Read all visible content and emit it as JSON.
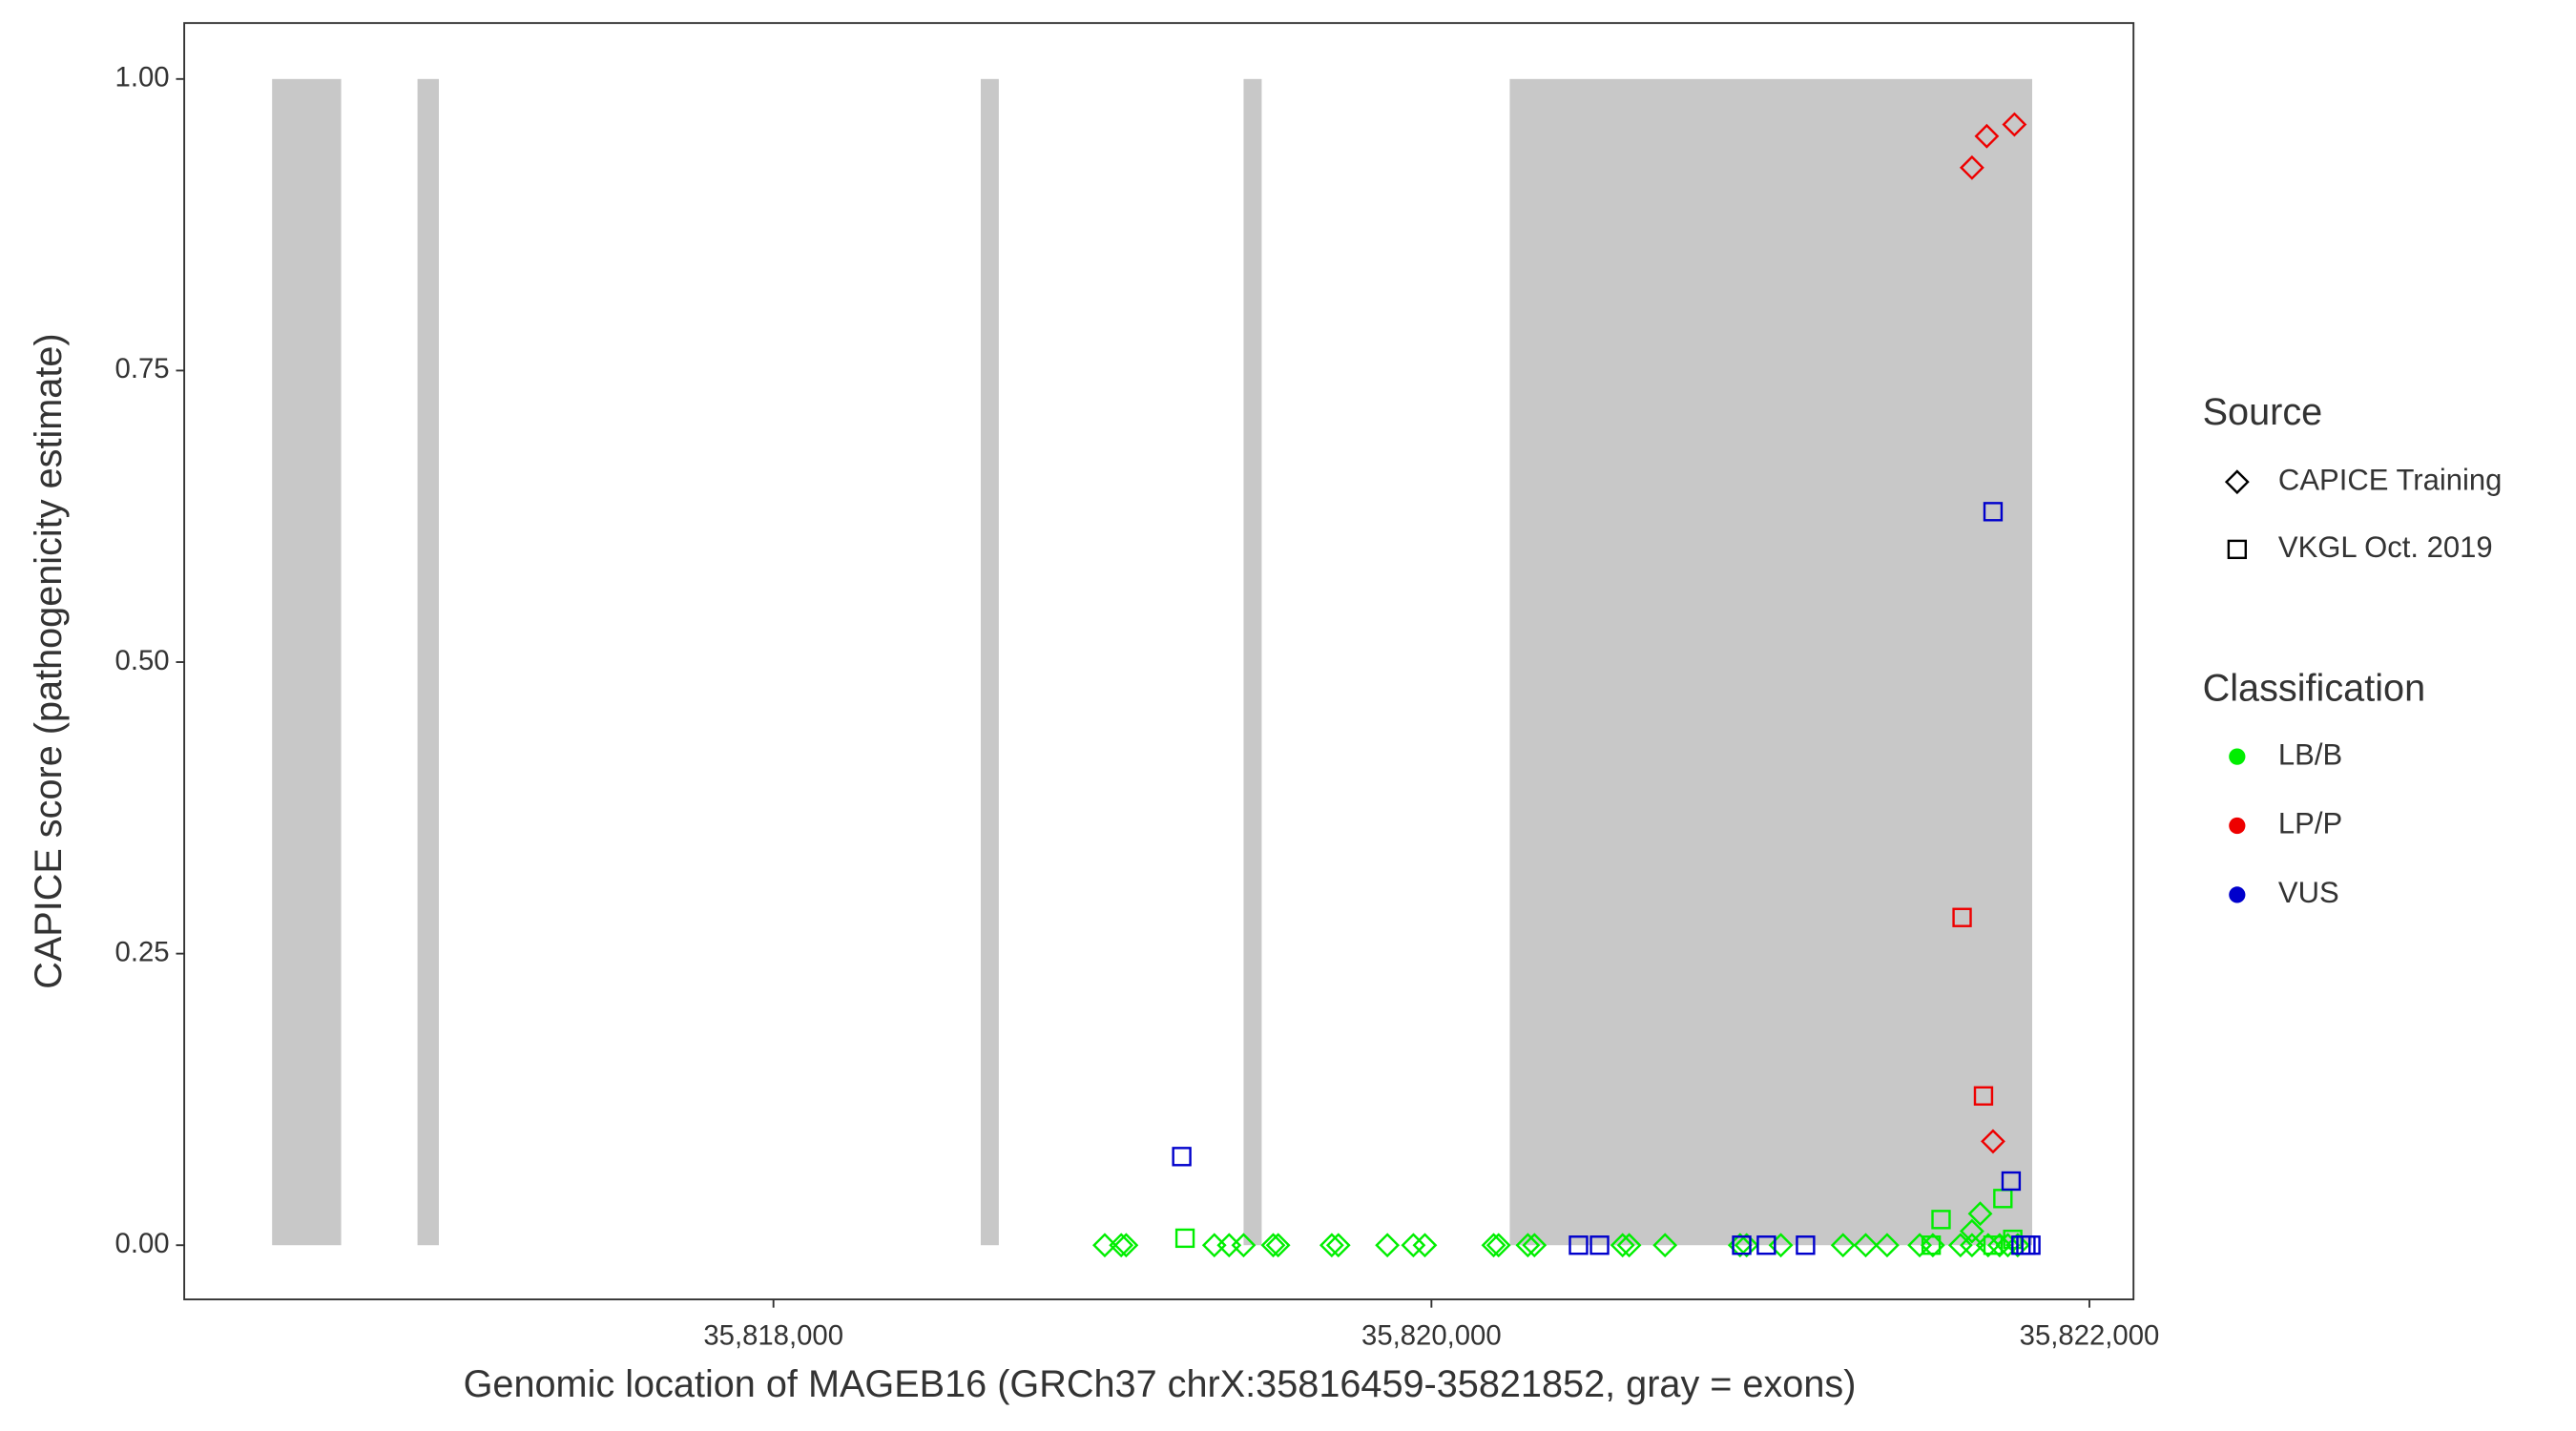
{
  "chart_data": {
    "type": "scatter",
    "x_label": "Genomic location of MAGEB16 (GRCh37 chrX:35816459-35821852, gray = exons)",
    "y_label": "CAPICE score (pathogenicity estimate)",
    "xlim": [
      35816209,
      35822134
    ],
    "ylim": [
      -0.0465,
      1.048
    ],
    "xticks": [
      {
        "value": 35818000,
        "label": "35,818,000"
      },
      {
        "value": 35820000,
        "label": "35,820,000"
      },
      {
        "value": 35822000,
        "label": "35,822,000"
      }
    ],
    "yticks": [
      {
        "value": 0,
        "label": "0.00"
      },
      {
        "value": 0.25,
        "label": "0.25"
      },
      {
        "value": 0.5,
        "label": "0.50"
      },
      {
        "value": 0.75,
        "label": "0.75"
      },
      {
        "value": 1,
        "label": "1.00"
      }
    ],
    "exons": {
      "color": "#c8c8c8",
      "y": [
        0,
        1
      ],
      "start": [
        35816476,
        35816918,
        35818630,
        35819429,
        35820238
      ],
      "end": [
        35816686,
        35816983,
        35818685,
        35819484,
        35821826
      ]
    },
    "legend_source": {
      "title": "Source",
      "entries": [
        {
          "name": "CAPICE Training",
          "shape": "diamond"
        },
        {
          "name": "VKGL Oct. 2019",
          "shape": "square"
        }
      ]
    },
    "legend_classification": {
      "title": "Classification",
      "entries": [
        {
          "name": "LB/B",
          "color": "#00ee00"
        },
        {
          "name": "LP/P",
          "color": "#ee0000"
        },
        {
          "name": "VUS",
          "color": "#0000cc"
        }
      ]
    },
    "points": {
      "x": [
        35819007,
        35819057,
        35819072,
        35819340,
        35819385,
        35819429,
        35819519,
        35819534,
        35819697,
        35819717,
        35819866,
        35819945,
        35819980,
        35820189,
        35820204,
        35820293,
        35820313,
        35820581,
        35820601,
        35820710,
        35820938,
        35820958,
        35821062,
        35821251,
        35821320,
        35821385,
        35821484,
        35821524,
        35821608,
        35821643,
        35821692,
        35821727,
        35821752,
        35821782,
        35821668,
        35821643,
        35819251,
        35821549,
        35821737,
        35821519,
        35821767,
        35821707,
        35821643,
        35821688,
        35821772,
        35821707,
        35821613,
        35821678,
        35819241,
        35821707,
        35821762,
        35820447,
        35820511,
        35820943,
        35821018,
        35821137,
        35821792,
        35821807,
        35821822
      ],
      "y": [
        0,
        0,
        0,
        0,
        0,
        0,
        0,
        0,
        0,
        0,
        0,
        0,
        0,
        0,
        0,
        0,
        0,
        0,
        0,
        0,
        0,
        0,
        0,
        0,
        0,
        0,
        0,
        0,
        0,
        0,
        0,
        0,
        0,
        0,
        0.027,
        0.012,
        0.006,
        0.022,
        0.04,
        0,
        0.005,
        0,
        0.924,
        0.951,
        0.961,
        0.089,
        0.281,
        0.128,
        0.076,
        0.629,
        0.055,
        0,
        0,
        0,
        0,
        0,
        0,
        0,
        0
      ],
      "source": [
        "CAPICE Training",
        "CAPICE Training",
        "CAPICE Training",
        "CAPICE Training",
        "CAPICE Training",
        "CAPICE Training",
        "CAPICE Training",
        "CAPICE Training",
        "CAPICE Training",
        "CAPICE Training",
        "CAPICE Training",
        "CAPICE Training",
        "CAPICE Training",
        "CAPICE Training",
        "CAPICE Training",
        "CAPICE Training",
        "CAPICE Training",
        "CAPICE Training",
        "CAPICE Training",
        "CAPICE Training",
        "CAPICE Training",
        "CAPICE Training",
        "CAPICE Training",
        "CAPICE Training",
        "CAPICE Training",
        "CAPICE Training",
        "CAPICE Training",
        "CAPICE Training",
        "CAPICE Training",
        "CAPICE Training",
        "CAPICE Training",
        "CAPICE Training",
        "CAPICE Training",
        "CAPICE Training",
        "CAPICE Training",
        "CAPICE Training",
        "VKGL Oct. 2019",
        "VKGL Oct. 2019",
        "VKGL Oct. 2019",
        "VKGL Oct. 2019",
        "VKGL Oct. 2019",
        "VKGL Oct. 2019",
        "CAPICE Training",
        "CAPICE Training",
        "CAPICE Training",
        "CAPICE Training",
        "VKGL Oct. 2019",
        "VKGL Oct. 2019",
        "VKGL Oct. 2019",
        "VKGL Oct. 2019",
        "VKGL Oct. 2019",
        "VKGL Oct. 2019",
        "VKGL Oct. 2019",
        "VKGL Oct. 2019",
        "VKGL Oct. 2019",
        "VKGL Oct. 2019",
        "VKGL Oct. 2019",
        "VKGL Oct. 2019",
        "VKGL Oct. 2019"
      ],
      "classification": [
        "LB/B",
        "LB/B",
        "LB/B",
        "LB/B",
        "LB/B",
        "LB/B",
        "LB/B",
        "LB/B",
        "LB/B",
        "LB/B",
        "LB/B",
        "LB/B",
        "LB/B",
        "LB/B",
        "LB/B",
        "LB/B",
        "LB/B",
        "LB/B",
        "LB/B",
        "LB/B",
        "LB/B",
        "LB/B",
        "LB/B",
        "LB/B",
        "LB/B",
        "LB/B",
        "LB/B",
        "LB/B",
        "LB/B",
        "LB/B",
        "LB/B",
        "LB/B",
        "LB/B",
        "LB/B",
        "LB/B",
        "LB/B",
        "LB/B",
        "LB/B",
        "LB/B",
        "LB/B",
        "LB/B",
        "LB/B",
        "LP/P",
        "LP/P",
        "LP/P",
        "LP/P",
        "LP/P",
        "LP/P",
        "VUS",
        "VUS",
        "VUS",
        "VUS",
        "VUS",
        "VUS",
        "VUS",
        "VUS",
        "VUS",
        "VUS",
        "VUS"
      ]
    }
  }
}
